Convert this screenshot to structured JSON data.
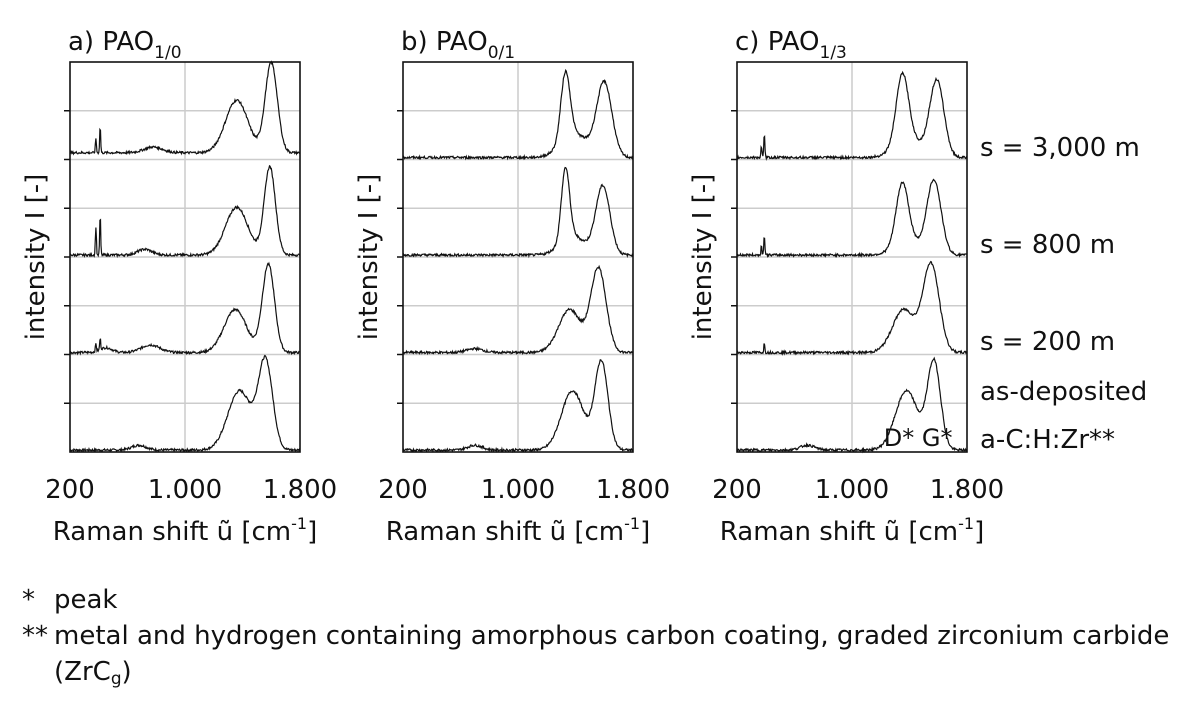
{
  "chart_data": [
    {
      "type": "line",
      "panel_label": "a) PAO",
      "panel_sub": "1/0",
      "ylabel": "intensity I [-]",
      "xlabel": "Raman shift ũ [cm",
      "xlabel_sup": "-1",
      "xlabel_end": "]",
      "xlim": [
        200,
        1800
      ],
      "xticks": [
        {
          "value": 200,
          "label": "200"
        },
        {
          "value": 1000,
          "label": "1.000"
        },
        {
          "value": 1800,
          "label": "1.800"
        }
      ],
      "grid": true,
      "series": [
        {
          "label": "as-deposited",
          "offset": 0,
          "peaks": [
            [
              1380,
              0.62,
              115
            ],
            [
              1560,
              0.92,
              70
            ],
            [
              680,
              0.05,
              70
            ]
          ],
          "baseline": 0.0,
          "sharp": []
        },
        {
          "label": "s = 200 m",
          "offset": 1,
          "peaks": [
            [
              1350,
              0.45,
              110
            ],
            [
              1580,
              0.92,
              60
            ],
            [
              760,
              0.08,
              90
            ],
            [
              450,
              0.05,
              60
            ]
          ],
          "baseline": 0.0,
          "sharp": [
            [
              410,
              0.12
            ],
            [
              380,
              0.08
            ]
          ]
        },
        {
          "label": "s = 800 m",
          "offset": 2,
          "peaks": [
            [
              1360,
              0.5,
              110
            ],
            [
              1590,
              0.92,
              55
            ],
            [
              720,
              0.06,
              70
            ]
          ],
          "baseline": 0.0,
          "sharp": [
            [
              410,
              0.42
            ],
            [
              380,
              0.3
            ]
          ]
        },
        {
          "label": "s = 3,000 m",
          "offset": 3,
          "peaks": [
            [
              1360,
              0.55,
              110
            ],
            [
              1600,
              0.94,
              60
            ],
            [
              780,
              0.06,
              90
            ]
          ],
          "baseline": 0.05,
          "sharp": [
            [
              410,
              0.28
            ],
            [
              380,
              0.15
            ]
          ]
        }
      ]
    },
    {
      "type": "line",
      "panel_label": "b) PAO",
      "panel_sub": "0/1",
      "ylabel": "intensity I [-]",
      "xlabel": "Raman shift ũ [cm",
      "xlabel_sup": "-1",
      "xlabel_end": "]",
      "xlim": [
        200,
        1800
      ],
      "xticks": [
        {
          "value": 200,
          "label": "200"
        },
        {
          "value": 1000,
          "label": "1.000"
        },
        {
          "value": 1800,
          "label": "1.800"
        }
      ],
      "grid": true,
      "series": [
        {
          "label": "as-deposited",
          "offset": 0,
          "peaks": [
            [
              1380,
              0.62,
              110
            ],
            [
              1580,
              0.92,
              65
            ],
            [
              700,
              0.05,
              70
            ]
          ],
          "baseline": 0.0,
          "sharp": []
        },
        {
          "label": "s = 200 m",
          "offset": 1,
          "peaks": [
            [
              1360,
              0.45,
              110
            ],
            [
              1560,
              0.88,
              75
            ],
            [
              700,
              0.04,
              80
            ]
          ],
          "baseline": 0.0,
          "sharp": []
        },
        {
          "label": "s = 800 m",
          "offset": 2,
          "peaks": [
            [
              1330,
              0.75,
              40
            ],
            [
              1380,
              0.2,
              120
            ],
            [
              1590,
              0.72,
              70
            ]
          ],
          "baseline": 0.0,
          "sharp": []
        },
        {
          "label": "s = 3,000 m",
          "offset": 3,
          "peaks": [
            [
              1330,
              0.7,
              45
            ],
            [
              1390,
              0.25,
              130
            ],
            [
              1600,
              0.78,
              75
            ]
          ],
          "baseline": 0.0,
          "sharp": []
        }
      ]
    },
    {
      "type": "line",
      "panel_label": "c) PAO",
      "panel_sub": "1/3",
      "ylabel": "intensity I [-]",
      "xlabel": "Raman shift ũ [cm",
      "xlabel_sup": "-1",
      "xlabel_end": "]",
      "xlim": [
        200,
        1800
      ],
      "xticks": [
        {
          "value": 200,
          "label": "200"
        },
        {
          "value": 1000,
          "label": "1.000"
        },
        {
          "value": 1800,
          "label": "1.800"
        }
      ],
      "grid": true,
      "annotation": "D* G*",
      "series": [
        {
          "label": "as-deposited",
          "offset": 0,
          "peaks": [
            [
              1380,
              0.62,
              110
            ],
            [
              1570,
              0.92,
              65
            ],
            [
              690,
              0.05,
              70
            ]
          ],
          "baseline": 0.0,
          "sharp": []
        },
        {
          "label": "s = 200 m",
          "offset": 1,
          "peaks": [
            [
              1360,
              0.45,
              110
            ],
            [
              1550,
              0.92,
              80
            ]
          ],
          "baseline": 0.0,
          "sharp": [
            [
              390,
              0.1
            ]
          ]
        },
        {
          "label": "s = 800 m",
          "offset": 2,
          "peaks": [
            [
              1350,
              0.62,
              60
            ],
            [
              1380,
              0.15,
              120
            ],
            [
              1570,
              0.78,
              70
            ]
          ],
          "baseline": 0.0,
          "sharp": [
            [
              390,
              0.22
            ],
            [
              370,
              0.1
            ]
          ]
        },
        {
          "label": "s = 3,000 m",
          "offset": 3,
          "peaks": [
            [
              1350,
              0.7,
              60
            ],
            [
              1390,
              0.2,
              130
            ],
            [
              1590,
              0.8,
              70
            ]
          ],
          "baseline": 0.0,
          "sharp": [
            [
              390,
              0.25
            ],
            [
              370,
              0.12
            ]
          ]
        }
      ]
    }
  ],
  "row_labels": [
    "s = 3,000 m",
    "s = 800 m",
    "s = 200 m",
    "as-deposited",
    "a-C:H:Zr**"
  ],
  "footnotes": {
    "note1_mark": "*",
    "note1_text": "peak",
    "note2_mark": "**",
    "note2_text": "metal and hydrogen containing amorphous carbon coating, graded zirconium carbide",
    "note2_cont_pre": "(ZrC",
    "note2_cont_sub": "g",
    "note2_cont_post": ")"
  },
  "colors": {
    "line": "#111111",
    "grid": "#cccccc",
    "axis": "#111111"
  }
}
